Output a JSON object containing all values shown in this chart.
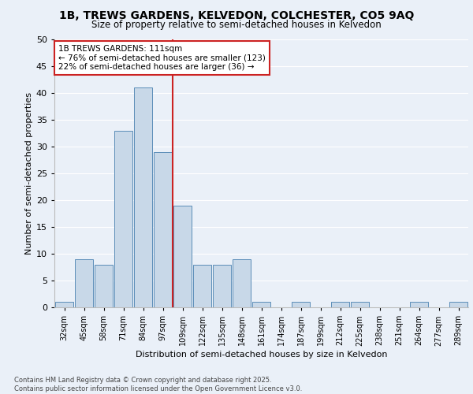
{
  "title_line1": "1B, TREWS GARDENS, KELVEDON, COLCHESTER, CO5 9AQ",
  "title_line2": "Size of property relative to semi-detached houses in Kelvedon",
  "xlabel": "Distribution of semi-detached houses by size in Kelvedon",
  "ylabel": "Number of semi-detached properties",
  "categories": [
    "32sqm",
    "45sqm",
    "58sqm",
    "71sqm",
    "84sqm",
    "97sqm",
    "109sqm",
    "122sqm",
    "135sqm",
    "148sqm",
    "161sqm",
    "174sqm",
    "187sqm",
    "199sqm",
    "212sqm",
    "225sqm",
    "238sqm",
    "251sqm",
    "264sqm",
    "277sqm",
    "289sqm"
  ],
  "values": [
    1,
    9,
    8,
    33,
    41,
    29,
    19,
    8,
    8,
    9,
    1,
    0,
    1,
    0,
    1,
    1,
    0,
    0,
    1,
    0,
    1
  ],
  "bar_color": "#c8d8e8",
  "bar_edge_color": "#5b8db8",
  "red_line_index": 6.0,
  "annotation_title": "1B TREWS GARDENS: 111sqm",
  "annotation_line2": "← 76% of semi-detached houses are smaller (123)",
  "annotation_line3": "22% of semi-detached houses are larger (36) →",
  "ylim": [
    0,
    50
  ],
  "yticks": [
    0,
    5,
    10,
    15,
    20,
    25,
    30,
    35,
    40,
    45,
    50
  ],
  "bg_color": "#eaf0f8",
  "plot_bg_color": "#eaf0f8",
  "footer_line1": "Contains HM Land Registry data © Crown copyright and database right 2025.",
  "footer_line2": "Contains public sector information licensed under the Open Government Licence v3.0.",
  "grid_color": "#ffffff",
  "box_color": "#cc2222",
  "box_facecolor": "#ffffff"
}
